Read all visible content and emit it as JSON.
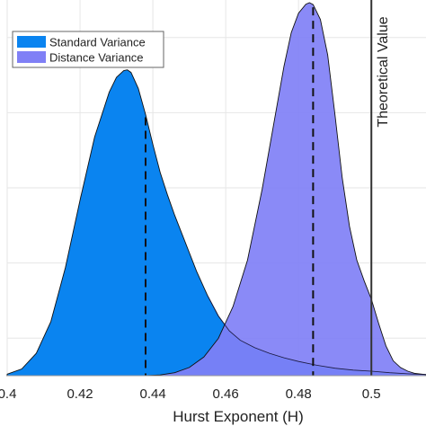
{
  "chart_data": {
    "type": "area",
    "xlabel": "Hurst Exponent (H)",
    "ylabel": "",
    "title": "",
    "xlim": [
      0.4,
      0.515
    ],
    "ylim": [
      0,
      1.0
    ],
    "xticks": [
      0.4,
      0.42,
      0.44,
      0.46,
      0.48,
      0.5
    ],
    "xtick_labels": [
      "0.4",
      "0.42",
      "0.44",
      "0.46",
      "0.48",
      "0.5"
    ],
    "grid": true,
    "legend_position": "top-left",
    "series": [
      {
        "name": "Standard Variance",
        "color": "#0a84f0",
        "x": [
          0.4,
          0.404,
          0.408,
          0.412,
          0.416,
          0.42,
          0.424,
          0.428,
          0.43,
          0.432,
          0.433,
          0.434,
          0.436,
          0.438,
          0.44,
          0.442,
          0.444,
          0.446,
          0.448,
          0.45,
          0.452,
          0.455,
          0.458,
          0.461,
          0.464,
          0.468,
          0.472,
          0.476,
          0.48,
          0.485,
          0.49,
          0.495,
          0.5,
          0.505,
          0.51,
          0.515
        ],
        "y": [
          0.004,
          0.018,
          0.06,
          0.145,
          0.29,
          0.47,
          0.64,
          0.76,
          0.8,
          0.818,
          0.82,
          0.813,
          0.77,
          0.7,
          0.62,
          0.545,
          0.485,
          0.43,
          0.38,
          0.33,
          0.28,
          0.215,
          0.16,
          0.12,
          0.095,
          0.075,
          0.06,
          0.048,
          0.038,
          0.028,
          0.02,
          0.015,
          0.012,
          0.008,
          0.005,
          0.003
        ],
        "mean": 0.438
      },
      {
        "name": "Distance Variance",
        "color": "#8080f6",
        "x": [
          0.438,
          0.442,
          0.446,
          0.45,
          0.454,
          0.458,
          0.462,
          0.466,
          0.47,
          0.474,
          0.476,
          0.478,
          0.48,
          0.482,
          0.483,
          0.484,
          0.486,
          0.488,
          0.49,
          0.492,
          0.494,
          0.496,
          0.498,
          0.5,
          0.502,
          0.504,
          0.506,
          0.508,
          0.51,
          0.512,
          0.515
        ],
        "y": [
          0.0,
          0.002,
          0.008,
          0.022,
          0.05,
          0.1,
          0.185,
          0.31,
          0.5,
          0.72,
          0.83,
          0.92,
          0.972,
          0.996,
          1.0,
          0.995,
          0.955,
          0.86,
          0.7,
          0.53,
          0.4,
          0.31,
          0.255,
          0.205,
          0.14,
          0.08,
          0.04,
          0.022,
          0.012,
          0.006,
          0.003
        ],
        "mean": 0.484
      }
    ],
    "reference_line": {
      "label": "Theoretical Value",
      "x": 0.5
    }
  }
}
